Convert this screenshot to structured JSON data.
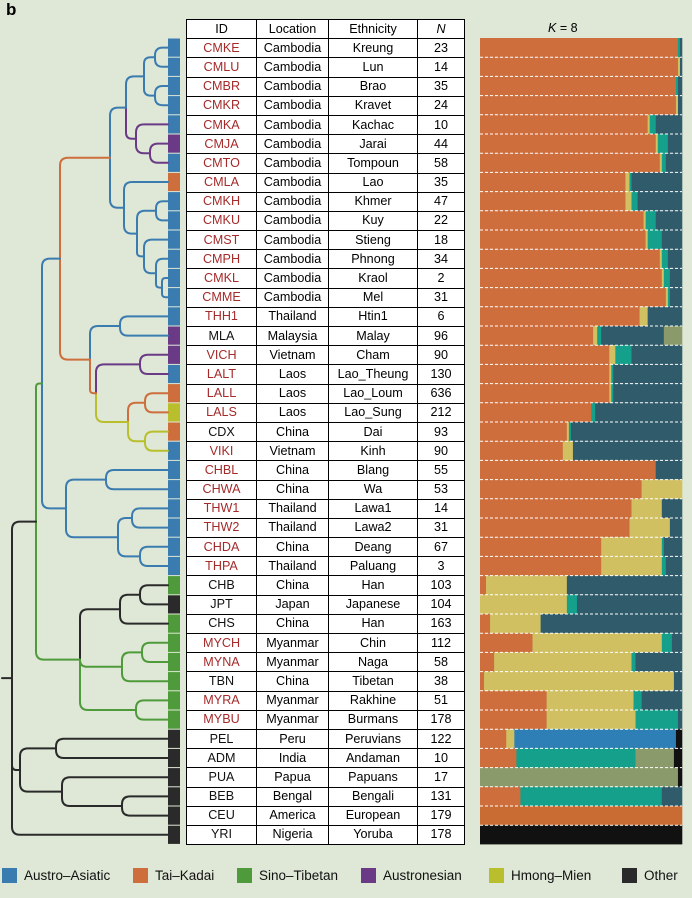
{
  "panel_letter": "b",
  "headers": {
    "id": "ID",
    "location": "Location",
    "ethnicity": "Ethnicity",
    "n": "N"
  },
  "k_label": {
    "k": "K",
    "eq": " = 8"
  },
  "colors": {
    "Austro-Asiatic": "#3a7cb0",
    "Tai-Kadai": "#cd6e3c",
    "Sino-Tibetan": "#4f9a3a",
    "Austronesian": "#6b3a86",
    "Hmong-Mien": "#b9bf2c",
    "Other": "#2a2a2a",
    "red_text": "#a52a2a",
    "black_text": "#111111"
  },
  "admixture_colors": [
    "#cd6e3c",
    "#d1c062",
    "#14a08b",
    "#2f5b6b",
    "#2e7fb5",
    "#8a9a6a",
    "#111111",
    "#c86c34"
  ],
  "legend": [
    {
      "label": "Austro–Asiatic",
      "family": "Austro-Asiatic"
    },
    {
      "label": "Tai–Kadai",
      "family": "Tai-Kadai"
    },
    {
      "label": "Sino–Tibetan",
      "family": "Sino-Tibetan"
    },
    {
      "label": "Austronesian",
      "family": "Austronesian"
    },
    {
      "label": "Hmong–Mien",
      "family": "Hmong-Mien"
    },
    {
      "label": "Other",
      "family": "Other"
    }
  ],
  "rows": [
    {
      "id": "CMKE",
      "location": "Cambodia",
      "ethnicity": "Kreung",
      "n": "23",
      "family": "Austro-Asiatic",
      "red": true,
      "k8": [
        0.98,
        0,
        0.01,
        0.01,
        0,
        0,
        0,
        0
      ]
    },
    {
      "id": "CMLU",
      "location": "Cambodia",
      "ethnicity": "Lun",
      "n": "14",
      "family": "Austro-Asiatic",
      "red": true,
      "k8": [
        0.98,
        0.01,
        0,
        0.01,
        0,
        0,
        0,
        0
      ]
    },
    {
      "id": "CMBR",
      "location": "Cambodia",
      "ethnicity": "Brao",
      "n": "35",
      "family": "Austro-Asiatic",
      "red": true,
      "k8": [
        0.97,
        0,
        0.01,
        0.02,
        0,
        0,
        0,
        0
      ]
    },
    {
      "id": "CMKR",
      "location": "Cambodia",
      "ethnicity": "Kravet",
      "n": "24",
      "family": "Austro-Asiatic",
      "red": true,
      "k8": [
        0.97,
        0.01,
        0,
        0.02,
        0,
        0,
        0,
        0
      ]
    },
    {
      "id": "CMKA",
      "location": "Cambodia",
      "ethnicity": "Kachac",
      "n": "10",
      "family": "Austro-Asiatic",
      "red": true,
      "k8": [
        0.83,
        0.01,
        0.03,
        0.13,
        0,
        0,
        0,
        0
      ]
    },
    {
      "id": "CMJA",
      "location": "Cambodia",
      "ethnicity": "Jarai",
      "n": "44",
      "family": "Austronesian",
      "red": true,
      "k8": [
        0.87,
        0.01,
        0.05,
        0.07,
        0,
        0,
        0,
        0
      ]
    },
    {
      "id": "CMTO",
      "location": "Cambodia",
      "ethnicity": "Tompoun",
      "n": "58",
      "family": "Austro-Asiatic",
      "red": true,
      "k8": [
        0.89,
        0.01,
        0.02,
        0.08,
        0,
        0,
        0,
        0
      ]
    },
    {
      "id": "CMLA",
      "location": "Cambodia",
      "ethnicity": "Lao",
      "n": "35",
      "family": "Tai-Kadai",
      "red": true,
      "k8": [
        0.72,
        0.02,
        0.01,
        0.25,
        0,
        0,
        0,
        0
      ]
    },
    {
      "id": "CMKH",
      "location": "Cambodia",
      "ethnicity": "Khmer",
      "n": "47",
      "family": "Austro-Asiatic",
      "red": true,
      "k8": [
        0.72,
        0.03,
        0.03,
        0.22,
        0,
        0,
        0,
        0
      ]
    },
    {
      "id": "CMKU",
      "location": "Cambodia",
      "ethnicity": "Kuy",
      "n": "22",
      "family": "Austro-Asiatic",
      "red": true,
      "k8": [
        0.81,
        0.01,
        0.05,
        0.13,
        0,
        0,
        0,
        0
      ]
    },
    {
      "id": "CMST",
      "location": "Cambodia",
      "ethnicity": "Stieng",
      "n": "18",
      "family": "Austro-Asiatic",
      "red": true,
      "k8": [
        0.82,
        0.01,
        0.07,
        0.1,
        0,
        0,
        0,
        0
      ]
    },
    {
      "id": "CMPH",
      "location": "Cambodia",
      "ethnicity": "Phnong",
      "n": "34",
      "family": "Austro-Asiatic",
      "red": true,
      "k8": [
        0.89,
        0.01,
        0.03,
        0.07,
        0,
        0,
        0,
        0
      ]
    },
    {
      "id": "CMKL",
      "location": "Cambodia",
      "ethnicity": "Kraol",
      "n": "2",
      "family": "Austro-Asiatic",
      "red": true,
      "k8": [
        0.9,
        0.01,
        0.03,
        0.06,
        0,
        0,
        0,
        0
      ]
    },
    {
      "id": "CMME",
      "location": "Cambodia",
      "ethnicity": "Mel",
      "n": "31",
      "family": "Austro-Asiatic",
      "red": true,
      "k8": [
        0.92,
        0.01,
        0.01,
        0.06,
        0,
        0,
        0,
        0
      ]
    },
    {
      "id": "THH1",
      "location": "Thailand",
      "ethnicity": "Htin1",
      "n": "6",
      "family": "Austro-Asiatic",
      "red": true,
      "k8": [
        0.79,
        0.04,
        0,
        0.17,
        0,
        0,
        0,
        0
      ]
    },
    {
      "id": "MLA",
      "location": "Malaysia",
      "ethnicity": "Malay",
      "n": "96",
      "family": "Austronesian",
      "red": false,
      "k8": [
        0.56,
        0.02,
        0.02,
        0.31,
        0,
        0.09,
        0,
        0
      ]
    },
    {
      "id": "VICH",
      "location": "Vietnam",
      "ethnicity": "Cham",
      "n": "90",
      "family": "Austronesian",
      "red": true,
      "k8": [
        0.64,
        0.03,
        0.08,
        0.25,
        0,
        0,
        0,
        0
      ]
    },
    {
      "id": "LALT",
      "location": "Laos",
      "ethnicity": "Lao_Theung",
      "n": "130",
      "family": "Austro-Asiatic",
      "red": true,
      "k8": [
        0.64,
        0.01,
        0.01,
        0.34,
        0,
        0,
        0,
        0
      ]
    },
    {
      "id": "LALL",
      "location": "Laos",
      "ethnicity": "Lao_Loum",
      "n": "636",
      "family": "Tai-Kadai",
      "red": true,
      "k8": [
        0.64,
        0.01,
        0.01,
        0.34,
        0,
        0,
        0,
        0
      ]
    },
    {
      "id": "LALS",
      "location": "Laos",
      "ethnicity": "Lao_Sung",
      "n": "212",
      "family": "Hmong-Mien",
      "red": true,
      "k8": [
        0.55,
        0,
        0.02,
        0.43,
        0,
        0,
        0,
        0
      ]
    },
    {
      "id": "CDX",
      "location": "China",
      "ethnicity": "Dai",
      "n": "93",
      "family": "Tai-Kadai",
      "red": false,
      "k8": [
        0.43,
        0.01,
        0.01,
        0.55,
        0,
        0,
        0,
        0
      ]
    },
    {
      "id": "VIKI",
      "location": "Vietnam",
      "ethnicity": "Kinh",
      "n": "90",
      "family": "Austro-Asiatic",
      "red": true,
      "k8": [
        0.41,
        0.05,
        0,
        0.54,
        0,
        0,
        0,
        0
      ]
    },
    {
      "id": "CHBL",
      "location": "China",
      "ethnicity": "Blang",
      "n": "55",
      "family": "Austro-Asiatic",
      "red": true,
      "k8": [
        0.87,
        0.0,
        0,
        0.13,
        0,
        0,
        0,
        0
      ]
    },
    {
      "id": "CHWA",
      "location": "China",
      "ethnicity": "Wa",
      "n": "53",
      "family": "Austro-Asiatic",
      "red": true,
      "k8": [
        0.8,
        0.2,
        0,
        0.0,
        0,
        0,
        0,
        0
      ]
    },
    {
      "id": "THW1",
      "location": "Thailand",
      "ethnicity": "Lawa1",
      "n": "14",
      "family": "Austro-Asiatic",
      "red": true,
      "k8": [
        0.75,
        0.15,
        0,
        0.1,
        0,
        0,
        0,
        0
      ]
    },
    {
      "id": "THW2",
      "location": "Thailand",
      "ethnicity": "Lawa2",
      "n": "31",
      "family": "Austro-Asiatic",
      "red": true,
      "k8": [
        0.74,
        0.2,
        0,
        0.06,
        0,
        0,
        0,
        0
      ]
    },
    {
      "id": "CHDA",
      "location": "China",
      "ethnicity": "Deang",
      "n": "67",
      "family": "Austro-Asiatic",
      "red": true,
      "k8": [
        0.6,
        0.3,
        0.01,
        0.09,
        0,
        0,
        0,
        0
      ]
    },
    {
      "id": "THPA",
      "location": "Thailand",
      "ethnicity": "Paluang",
      "n": "3",
      "family": "Austro-Asiatic",
      "red": true,
      "k8": [
        0.6,
        0.3,
        0.02,
        0.08,
        0,
        0,
        0,
        0
      ]
    },
    {
      "id": "CHB",
      "location": "China",
      "ethnicity": "Han",
      "n": "103",
      "family": "Sino-Tibetan",
      "red": false,
      "k8": [
        0.03,
        0.4,
        0,
        0.57,
        0,
        0,
        0,
        0
      ]
    },
    {
      "id": "JPT",
      "location": "Japan",
      "ethnicity": "Japanese",
      "n": "104",
      "family": "Other",
      "red": false,
      "k8": [
        0,
        0.43,
        0.05,
        0.52,
        0,
        0,
        0,
        0
      ]
    },
    {
      "id": "CHS",
      "location": "China",
      "ethnicity": "Han",
      "n": "163",
      "family": "Sino-Tibetan",
      "red": false,
      "k8": [
        0.05,
        0.25,
        0,
        0.7,
        0,
        0,
        0,
        0
      ]
    },
    {
      "id": "MYCH",
      "location": "Myanmar",
      "ethnicity": "Chin",
      "n": "112",
      "family": "Sino-Tibetan",
      "red": true,
      "k8": [
        0.26,
        0.64,
        0.05,
        0.05,
        0,
        0,
        0,
        0
      ]
    },
    {
      "id": "MYNA",
      "location": "Myanmar",
      "ethnicity": "Naga",
      "n": "58",
      "family": "Sino-Tibetan",
      "red": true,
      "k8": [
        0.07,
        0.68,
        0.02,
        0.23,
        0,
        0,
        0,
        0
      ]
    },
    {
      "id": "TBN",
      "location": "China",
      "ethnicity": "Tibetan",
      "n": "38",
      "family": "Sino-Tibetan",
      "red": false,
      "k8": [
        0.02,
        0.94,
        0,
        0.04,
        0,
        0,
        0,
        0
      ]
    },
    {
      "id": "MYRA",
      "location": "Myanmar",
      "ethnicity": "Rakhine",
      "n": "51",
      "family": "Sino-Tibetan",
      "red": true,
      "k8": [
        0.33,
        0.43,
        0.04,
        0.2,
        0,
        0,
        0,
        0
      ]
    },
    {
      "id": "MYBU",
      "location": "Myanmar",
      "ethnicity": "Burmans",
      "n": "178",
      "family": "Sino-Tibetan",
      "red": true,
      "k8": [
        0.33,
        0.44,
        0.21,
        0.02,
        0,
        0,
        0,
        0
      ]
    },
    {
      "id": "PEL",
      "location": "Peru",
      "ethnicity": "Peruvians",
      "n": "122",
      "family": "Other",
      "red": false,
      "k8": [
        0.13,
        0.04,
        0,
        0,
        0.8,
        0,
        0.03,
        0
      ]
    },
    {
      "id": "ADM",
      "location": "India",
      "ethnicity": "Andaman",
      "n": "10",
      "family": "Other",
      "red": false,
      "k8": [
        0.18,
        0.0,
        0.59,
        0.0,
        0,
        0.19,
        0.04,
        0
      ]
    },
    {
      "id": "PUA",
      "location": "Papua",
      "ethnicity": "Papuans",
      "n": "17",
      "family": "Other",
      "red": false,
      "k8": [
        0,
        0,
        0,
        0,
        0,
        0.98,
        0.02,
        0
      ]
    },
    {
      "id": "BEB",
      "location": "Bengal",
      "ethnicity": "Bengali",
      "n": "131",
      "family": "Other",
      "red": false,
      "k8": [
        0.2,
        0,
        0.7,
        0.1,
        0,
        0,
        0,
        0
      ]
    },
    {
      "id": "CEU",
      "location": "America",
      "ethnicity": "European",
      "n": "179",
      "family": "Other",
      "red": false,
      "k8": [
        0,
        0,
        0,
        0,
        0,
        0,
        0,
        1
      ]
    },
    {
      "id": "YRI",
      "location": "Nigeria",
      "ethnicity": "Yoruba",
      "n": "178",
      "family": "Other",
      "red": false,
      "k8": [
        0,
        0,
        0,
        0,
        0,
        0,
        1,
        0
      ]
    }
  ]
}
